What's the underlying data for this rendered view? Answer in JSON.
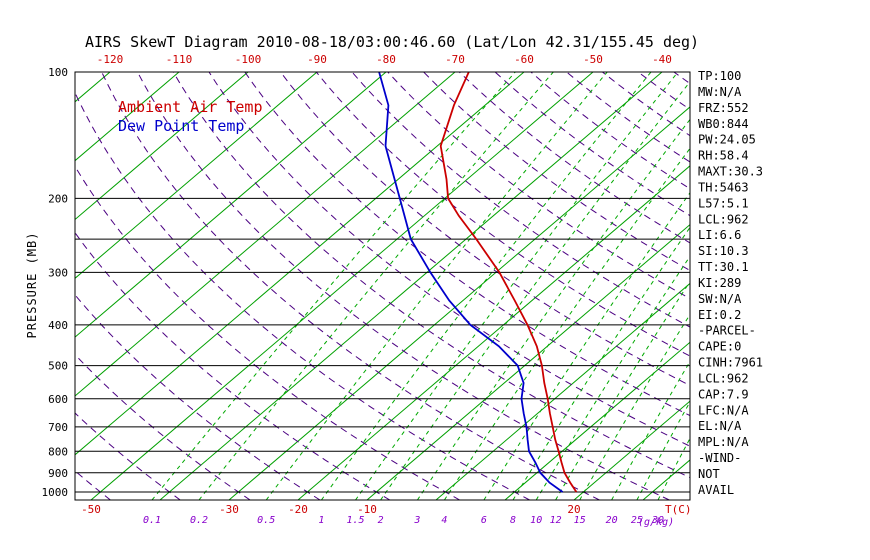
{
  "chart_data": {
    "type": "line",
    "title": "AIRS SkewT Diagram 2010-08-18/03:00:46.60 (Lat/Lon 42.31/155.45 deg)",
    "ylabel": "PRESSURE (MB)",
    "xlabel_temp": "T(C)",
    "xlabel_mixing": "(g/kg)",
    "legend": [
      {
        "label": "Ambient Air Temp",
        "color": "#cc0000"
      },
      {
        "label": "Dew Point Temp",
        "color": "#0000cc"
      }
    ],
    "pressure_axis": {
      "min": 100,
      "max": 1000,
      "scale": "log"
    },
    "pressure_ticks": [
      100,
      200,
      300,
      400,
      500,
      600,
      700,
      800,
      900,
      1000
    ],
    "pressure_gridlines": [
      100,
      200,
      250,
      300,
      400,
      500,
      600,
      700,
      800,
      900,
      1000
    ],
    "top_temp_ticks": [
      -120,
      -110,
      -100,
      -90,
      -80,
      -70,
      -60,
      -50,
      -40
    ],
    "bottom_temp_ticks": [
      -50,
      -30,
      -20,
      -10,
      20
    ],
    "isotherms": {
      "min": -160,
      "max": 40,
      "step": 10
    },
    "dry_adiabats": {
      "min": -60,
      "max": 190,
      "step": 10
    },
    "mixing_ratio_values": [
      0.1,
      0.2,
      0.5,
      1,
      1.5,
      2,
      3,
      4,
      6,
      8,
      10,
      12,
      15,
      20,
      25,
      30
    ],
    "colors": {
      "isotherm": "#00a000",
      "adiabat": "#4b0082",
      "mixing": "#00a800",
      "mixing_label": "#8800cc",
      "temp": "#cc0000",
      "dew": "#0000cc",
      "axis": "#000000"
    },
    "series": [
      {
        "name": "Ambient Air Temp",
        "color": "#cc0000",
        "points": [
          [
            1000,
            19
          ],
          [
            950,
            16.5
          ],
          [
            900,
            14
          ],
          [
            850,
            11.8
          ],
          [
            800,
            9.5
          ],
          [
            750,
            7
          ],
          [
            700,
            4.5
          ],
          [
            650,
            1.8
          ],
          [
            600,
            -1
          ],
          [
            550,
            -4.2
          ],
          [
            500,
            -7.5
          ],
          [
            450,
            -11.5
          ],
          [
            400,
            -16.5
          ],
          [
            350,
            -22.5
          ],
          [
            300,
            -29.5
          ],
          [
            250,
            -38.5
          ],
          [
            220,
            -45
          ],
          [
            200,
            -49.5
          ],
          [
            180,
            -53
          ],
          [
            150,
            -59.5
          ],
          [
            120,
            -64.5
          ],
          [
            100,
            -68
          ]
        ]
      },
      {
        "name": "Dew Point Temp",
        "color": "#0000cc",
        "points": [
          [
            1000,
            17
          ],
          [
            950,
            13.5
          ],
          [
            900,
            10.5
          ],
          [
            850,
            8
          ],
          [
            800,
            5.2
          ],
          [
            750,
            3
          ],
          [
            700,
            0.7
          ],
          [
            650,
            -2
          ],
          [
            600,
            -4.8
          ],
          [
            550,
            -7.2
          ],
          [
            500,
            -11
          ],
          [
            450,
            -17
          ],
          [
            400,
            -24.8
          ],
          [
            350,
            -32
          ],
          [
            300,
            -39.5
          ],
          [
            250,
            -48
          ],
          [
            200,
            -56.5
          ],
          [
            150,
            -67.5
          ],
          [
            120,
            -74
          ],
          [
            100,
            -81
          ]
        ]
      }
    ],
    "stats": [
      "TP:100",
      "MW:N/A",
      "FRZ:552",
      "WB0:844",
      "PW:24.05",
      "RH:58.4",
      "MAXT:30.3",
      "TH:5463",
      "L57:5.1",
      "LCL:962",
      "LI:6.6",
      "SI:10.3",
      "TT:30.1",
      "KI:289",
      "SW:N/A",
      "EI:0.2",
      "-PARCEL-",
      "CAPE:0",
      "CINH:7961",
      "LCL:962",
      "CAP:7.9",
      "LFC:N/A",
      "EL:N/A",
      "MPL:N/A",
      "-WIND-",
      "NOT",
      "AVAIL"
    ]
  }
}
